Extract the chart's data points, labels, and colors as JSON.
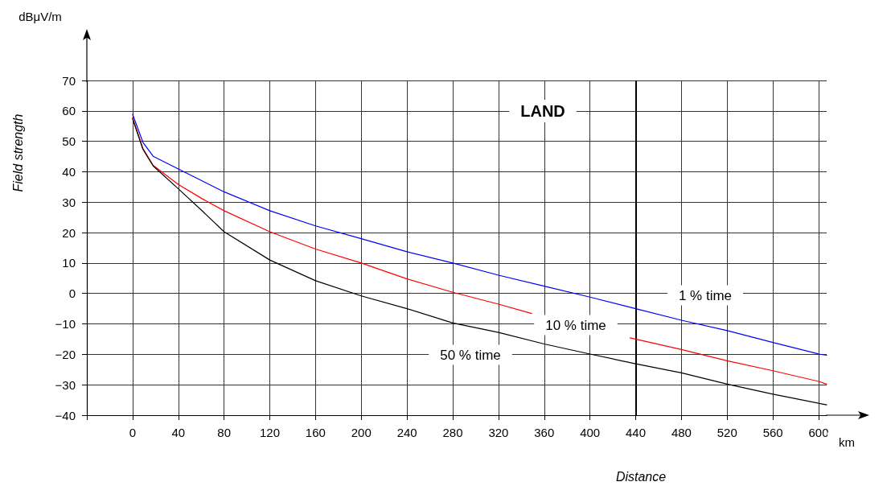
{
  "chart_data": {
    "type": "line",
    "xlabel": "Distance",
    "ylabel": "Field strength",
    "annotations": [
      "LAND",
      "dBμV/m",
      "km",
      "1 % time",
      "10 % time",
      "50 % time"
    ],
    "series": [
      {
        "color": "#0000ff",
        "x": [
          0,
          9,
          18,
          40,
          80,
          120,
          160,
          200,
          240,
          280,
          320,
          360,
          400,
          440,
          480,
          520,
          560,
          600,
          607
        ],
        "values": [
          58.9,
          49.7,
          45.1,
          40.9,
          33.4,
          27.2,
          22.2,
          18.0,
          13.7,
          10.0,
          6.0,
          2.4,
          -1.2,
          -5.0,
          -8.8,
          -12.2,
          -16.1,
          -19.9,
          -20.3
        ]
      },
      {
        "color": "#ff0000",
        "x": [
          0,
          9,
          18,
          40,
          61,
          80,
          120,
          160,
          200,
          240,
          280,
          320,
          349,
          390,
          435,
          480,
          520,
          560,
          600,
          607
        ],
        "values": [
          57.8,
          47.7,
          42.1,
          35.8,
          31.1,
          27.2,
          20.3,
          14.6,
          10.0,
          4.8,
          0.4,
          -3.5,
          -6.6,
          null,
          -14.6,
          -18.4,
          -22.1,
          -25.4,
          -28.9,
          -29.8
        ]
      },
      {
        "color": "#000000",
        "x": [
          0,
          9,
          18,
          40,
          61,
          80,
          120,
          160,
          200,
          240,
          280,
          320,
          360,
          400,
          440,
          480,
          520,
          560,
          607
        ],
        "values": [
          57.4,
          47.4,
          41.9,
          34.4,
          27.1,
          20.3,
          11.0,
          4.2,
          -0.8,
          -5.0,
          -9.7,
          -12.8,
          -16.6,
          -19.9,
          -23.1,
          -26.1,
          -29.8,
          -33.1,
          -36.6
        ]
      }
    ],
    "xlim": [
      -40,
      607
    ],
    "xticks": [
      {
        "value": -40,
        "label": null
      },
      0,
      40,
      80,
      120,
      160,
      200,
      240,
      280,
      320,
      360,
      400,
      440,
      480,
      520,
      560,
      600
    ],
    "ylim": [
      -40,
      70
    ],
    "yticks": [
      -40,
      -30,
      -20,
      -10,
      0,
      10,
      20,
      30,
      40,
      50,
      60,
      70
    ],
    "ref_lines": [
      {
        "axis": "x",
        "value": 440,
        "color": "#000000",
        "line_style": "solid"
      }
    ],
    "grid": true,
    "marker": "none",
    "line_style": "solid"
  }
}
